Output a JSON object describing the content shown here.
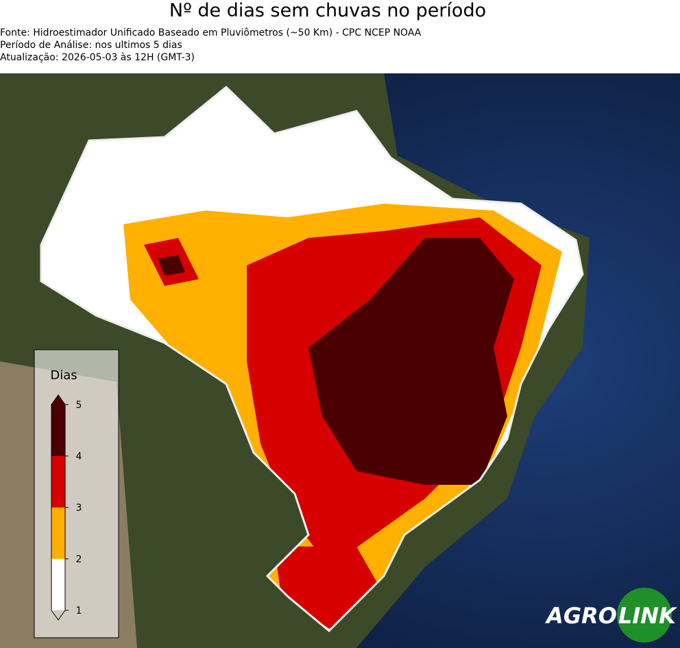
{
  "title": "Nº de dias sem chuvas no período",
  "subtitle_lines": [
    "Fonte: Hidroestimador Unificado Baseado em Pluviômetros (~50 Km) - CPC NCEP NOAA",
    "Período de Análise: nos ultimos 5 dias",
    "Atualização: 2026-05-03 às 12H (GMT-3)"
  ],
  "legend": {
    "title": "Dias",
    "ticks": [
      1,
      2,
      3,
      4,
      5
    ],
    "colors": [
      "#ffffff",
      "#ffb000",
      "#d60000",
      "#4a0000"
    ]
  },
  "logo": {
    "left": "AGRO",
    "right": "LINK"
  }
}
